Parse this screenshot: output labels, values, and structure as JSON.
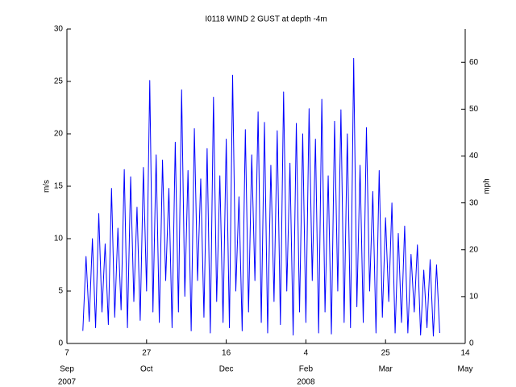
{
  "chart_data": {
    "type": "line",
    "title": "I0118 WIND 2 GUST at depth -4m",
    "ylabel": "m/s",
    "y2label": "mph",
    "xlim": [
      "2007-09-07",
      "2008-05-14"
    ],
    "xticks": [
      {
        "value": "2007-09-07",
        "label": "7"
      },
      {
        "value": "2007-10-27",
        "label": "27"
      },
      {
        "value": "2007-12-16",
        "label": "16"
      },
      {
        "value": "2008-02-04",
        "label": "4"
      },
      {
        "value": "2008-03-25",
        "label": "25"
      },
      {
        "value": "2008-05-14",
        "label": "14"
      }
    ],
    "xtick_months": [
      {
        "value": "2007-09-07",
        "label": "Sep"
      },
      {
        "value": "2007-10-27",
        "label": "Oct"
      },
      {
        "value": "2007-12-16",
        "label": "Dec"
      },
      {
        "value": "2008-02-04",
        "label": "Feb"
      },
      {
        "value": "2008-03-25",
        "label": "Mar"
      },
      {
        "value": "2008-05-14",
        "label": "May"
      }
    ],
    "xtick_years": [
      {
        "value": "2007-09-07",
        "label": "2007"
      },
      {
        "value": "2008-02-04",
        "label": "2008"
      }
    ],
    "ylim": [
      0,
      30
    ],
    "yticks": [
      0,
      5,
      10,
      15,
      20,
      25,
      30
    ],
    "y2lim": [
      0,
      67.1
    ],
    "y2ticks": [
      0,
      10,
      20,
      30,
      40,
      50,
      60
    ],
    "series": [
      {
        "name": "WIND 2 GUST",
        "color": "#0000ff",
        "x": [
          "2007-09-17",
          "2007-09-19",
          "2007-09-21",
          "2007-09-23",
          "2007-09-25",
          "2007-09-27",
          "2007-09-29",
          "2007-10-01",
          "2007-10-03",
          "2007-10-05",
          "2007-10-07",
          "2007-10-09",
          "2007-10-11",
          "2007-10-13",
          "2007-10-15",
          "2007-10-17",
          "2007-10-19",
          "2007-10-21",
          "2007-10-23",
          "2007-10-25",
          "2007-10-27",
          "2007-10-29",
          "2007-10-31",
          "2007-11-02",
          "2007-11-04",
          "2007-11-06",
          "2007-11-08",
          "2007-11-10",
          "2007-11-12",
          "2007-11-14",
          "2007-11-16",
          "2007-11-18",
          "2007-11-20",
          "2007-11-22",
          "2007-11-24",
          "2007-11-26",
          "2007-11-28",
          "2007-11-30",
          "2007-12-02",
          "2007-12-04",
          "2007-12-06",
          "2007-12-08",
          "2007-12-10",
          "2007-12-12",
          "2007-12-14",
          "2007-12-16",
          "2007-12-18",
          "2007-12-20",
          "2007-12-22",
          "2007-12-24",
          "2007-12-26",
          "2007-12-28",
          "2007-12-30",
          "2008-01-01",
          "2008-01-03",
          "2008-01-05",
          "2008-01-07",
          "2008-01-09",
          "2008-01-11",
          "2008-01-13",
          "2008-01-15",
          "2008-01-17",
          "2008-01-19",
          "2008-01-21",
          "2008-01-23",
          "2008-01-25",
          "2008-01-27",
          "2008-01-29",
          "2008-01-31",
          "2008-02-02",
          "2008-02-04",
          "2008-02-06",
          "2008-02-08",
          "2008-02-10",
          "2008-02-12",
          "2008-02-14",
          "2008-02-16",
          "2008-02-18",
          "2008-02-20",
          "2008-02-22",
          "2008-02-24",
          "2008-02-26",
          "2008-02-28",
          "2008-03-01",
          "2008-03-03",
          "2008-03-05",
          "2008-03-07",
          "2008-03-09",
          "2008-03-11",
          "2008-03-13",
          "2008-03-15",
          "2008-03-17",
          "2008-03-19",
          "2008-03-21",
          "2008-03-23",
          "2008-03-25",
          "2008-03-27",
          "2008-03-29",
          "2008-03-31",
          "2008-04-02",
          "2008-04-04",
          "2008-04-06",
          "2008-04-08",
          "2008-04-10",
          "2008-04-12",
          "2008-04-14",
          "2008-04-16",
          "2008-04-18",
          "2008-04-20",
          "2008-04-22",
          "2008-04-24",
          "2008-04-26",
          "2008-04-28"
        ],
        "values": [
          1.2,
          8.3,
          2.1,
          10,
          1.5,
          12.4,
          3,
          9.5,
          1.8,
          14.8,
          2.5,
          11,
          3.2,
          16.6,
          1.5,
          15.9,
          4,
          13,
          2.2,
          16.8,
          5,
          25.1,
          3,
          18,
          2,
          17.5,
          6,
          14.8,
          1.5,
          19.2,
          3,
          24.2,
          4.5,
          16.5,
          1.2,
          20.5,
          6,
          15.7,
          2.5,
          18.6,
          1,
          23.5,
          4,
          16,
          2,
          19.5,
          1.5,
          25.6,
          5,
          14,
          1.2,
          20.4,
          3,
          18,
          6,
          22.1,
          2,
          21.1,
          1,
          17,
          4,
          20.3,
          1.8,
          24,
          5,
          17.2,
          0.8,
          21,
          3,
          20,
          2,
          22.4,
          6,
          19.5,
          1,
          23.3,
          3,
          16,
          0.9,
          21.2,
          5,
          22.3,
          2,
          20,
          1.5,
          27.2,
          3.5,
          17,
          2,
          20.6,
          5,
          14.5,
          1,
          16.5,
          2.5,
          12,
          4,
          13.4,
          1,
          10.5,
          2,
          11.2,
          1,
          8.5,
          3,
          9.4,
          0.8,
          7,
          1.5,
          8,
          0.7,
          7.5,
          1
        ]
      }
    ]
  }
}
